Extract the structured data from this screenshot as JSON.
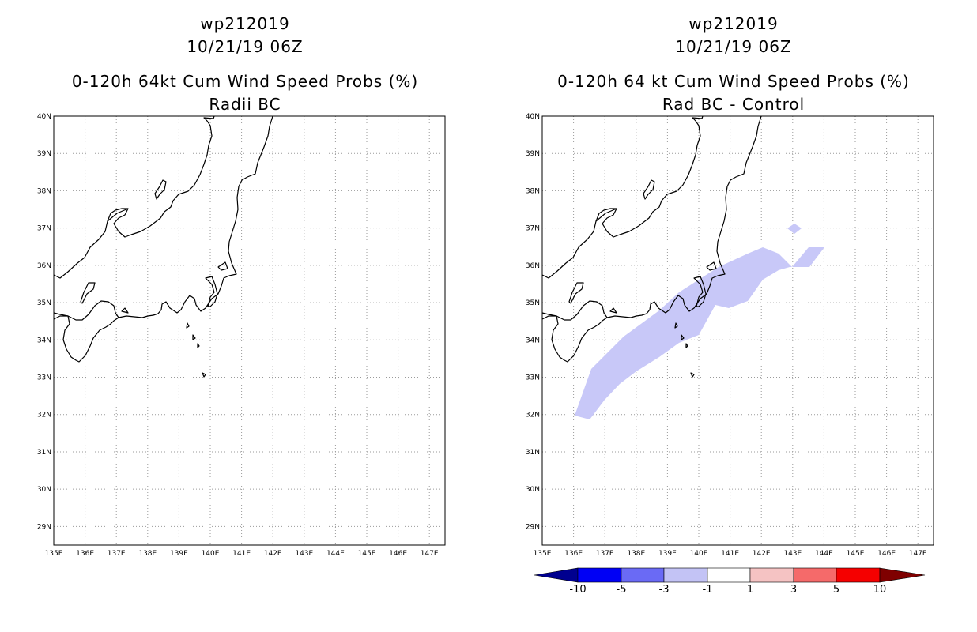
{
  "left_panel": {
    "title_lines": [
      "wp212019",
      "10/21/19 06Z",
      "0-120h 64kt Cum Wind Speed Probs (%)",
      "Radii BC"
    ]
  },
  "right_panel": {
    "title_lines": [
      "wp212019",
      "10/21/19 06Z",
      "0-120h 64 kt Cum Wind Speed Probs (%)",
      "Rad BC - Control"
    ]
  },
  "map_extent": {
    "lon": [
      135,
      147.5
    ],
    "lat": [
      28.5,
      40
    ]
  },
  "lat_labels": [
    "29N",
    "30N",
    "31N",
    "32N",
    "33N",
    "34N",
    "35N",
    "36N",
    "37N",
    "38N",
    "39N",
    "40N"
  ],
  "lon_labels": [
    "135E",
    "136E",
    "137E",
    "138E",
    "139E",
    "140E",
    "141E",
    "142E",
    "143E",
    "144E",
    "145E",
    "146E",
    "147E"
  ],
  "colorbar": {
    "labels": [
      "-10",
      "-5",
      "-3",
      "-1",
      "1",
      "3",
      "5",
      "10"
    ],
    "colors": [
      "#00008f",
      "#0000f5",
      "#6a6af5",
      "#c3c3f5",
      "#ffffff",
      "#f5c3c3",
      "#f56a6a",
      "#f50000",
      "#7f0000"
    ]
  },
  "colors": {
    "shade_minus3_to_minus1": "#c8c8f8",
    "frame": "#000000"
  }
}
